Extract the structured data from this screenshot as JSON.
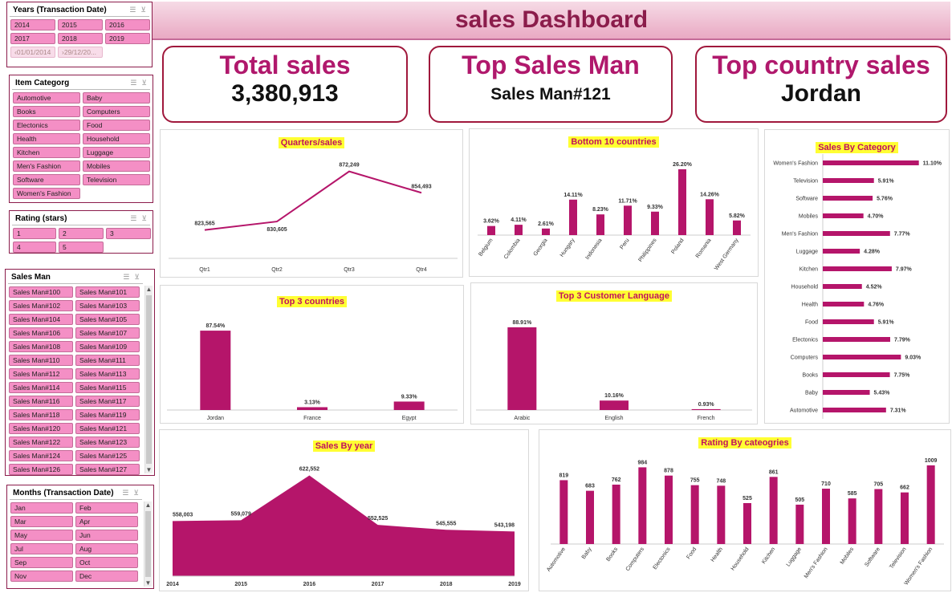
{
  "title": "sales Dashboard",
  "kpis": {
    "total_sales_label": "Total sales",
    "total_sales_value": "3,380,913",
    "top_salesman_label": "Top Sales Man",
    "top_salesman_value": "Sales Man#121",
    "top_country_label": "Top country sales",
    "top_country_value": "Jordan"
  },
  "slicers": {
    "years": {
      "title": "Years (Transaction Date)",
      "items": [
        "2014",
        "2015",
        "2016",
        "2017",
        "2018",
        "2019"
      ],
      "dim_items": [
        "‹01/01/2014",
        "›29/12/20..."
      ]
    },
    "category": {
      "title": "Item Categorg",
      "items": [
        "Automotive",
        "Baby",
        "Books",
        "Computers",
        "Electonics",
        "Food",
        "Health",
        "Household",
        "Kitchen",
        "Luggage",
        "Men's Fashion",
        "Mobiles",
        "Software",
        "Television",
        "Women's Fashion"
      ]
    },
    "rating": {
      "title": "Rating (stars)",
      "items": [
        "1",
        "2",
        "3",
        "4",
        "5"
      ]
    },
    "salesman": {
      "title": "Sales Man",
      "items": [
        "Sales Man#100",
        "Sales Man#101",
        "Sales Man#102",
        "Sales Man#103",
        "Sales Man#104",
        "Sales Man#105",
        "Sales Man#106",
        "Sales Man#107",
        "Sales Man#108",
        "Sales Man#109",
        "Sales Man#110",
        "Sales Man#111",
        "Sales Man#112",
        "Sales Man#113",
        "Sales Man#114",
        "Sales Man#115",
        "Sales Man#116",
        "Sales Man#117",
        "Sales Man#118",
        "Sales Man#119",
        "Sales Man#120",
        "Sales Man#121",
        "Sales Man#122",
        "Sales Man#123",
        "Sales Man#124",
        "Sales Man#125",
        "Sales Man#126",
        "Sales Man#127"
      ]
    },
    "months": {
      "title": "Months (Transaction Date)",
      "items": [
        "Jan",
        "Feb",
        "Mar",
        "Apr",
        "May",
        "Jun",
        "Jul",
        "Aug",
        "Sep",
        "Oct",
        "Nov",
        "Dec"
      ]
    }
  },
  "colors": {
    "accent": "#b5156a",
    "title": "#8b1c4b",
    "label_bg": "#ffff33"
  },
  "chart_data": [
    {
      "id": "quarters",
      "type": "line",
      "title": "Quarters/sales",
      "categories": [
        "Qtr1",
        "Qtr2",
        "Qtr3",
        "Qtr4"
      ],
      "values": [
        823565,
        830605,
        872249,
        854493
      ],
      "labels": [
        "823,565",
        "830,605",
        "872,249",
        "854,493"
      ],
      "ylim": [
        800000,
        880000
      ]
    },
    {
      "id": "bottom10",
      "type": "bar",
      "title": "Bottom 10 countries",
      "categories": [
        "Belgium",
        "Colombia",
        "Georgia",
        "Hungary",
        "Indonesia",
        "Peru",
        "Philippines",
        "Poland",
        "Romania",
        "West Germany"
      ],
      "values": [
        3.62,
        4.11,
        2.61,
        14.11,
        8.23,
        11.71,
        9.33,
        26.2,
        14.26,
        5.82
      ],
      "labels": [
        "3.62%",
        "4.11%",
        "2.61%",
        "14.11%",
        "8.23%",
        "11.71%",
        "9.33%",
        "26.20%",
        "14.26%",
        "5.82%"
      ],
      "ylim": [
        0,
        30
      ]
    },
    {
      "id": "category",
      "type": "bar",
      "orientation": "horizontal",
      "title": "Sales By Category",
      "categories": [
        "Women's Fashion",
        "Television",
        "Software",
        "Mobiles",
        "Men's Fashion",
        "Luggage",
        "Kitchen",
        "Household",
        "Health",
        "Food",
        "Electonics",
        "Computers",
        "Books",
        "Baby",
        "Automotive"
      ],
      "values": [
        11.1,
        5.91,
        5.76,
        4.7,
        7.77,
        4.28,
        7.97,
        4.52,
        4.76,
        5.91,
        7.79,
        9.03,
        7.75,
        5.43,
        7.31
      ],
      "labels": [
        "11.10%",
        "5.91%",
        "5.76%",
        "4.70%",
        "7.77%",
        "4.28%",
        "7.97%",
        "4.52%",
        "4.76%",
        "5.91%",
        "7.79%",
        "9.03%",
        "7.75%",
        "5.43%",
        "7.31%"
      ],
      "xlim": [
        0,
        11.5
      ]
    },
    {
      "id": "top3countries",
      "type": "bar",
      "title": "Top 3 countries",
      "categories": [
        "Jordan",
        "France",
        "Egypt"
      ],
      "values": [
        87.54,
        3.13,
        9.33
      ],
      "labels": [
        "87.54%",
        "3.13%",
        "9.33%"
      ],
      "ylim": [
        0,
        100
      ]
    },
    {
      "id": "language",
      "type": "bar",
      "title": "Top 3 Customer Language",
      "categories": [
        "Arabic",
        "English",
        "French"
      ],
      "values": [
        88.91,
        10.16,
        0.93
      ],
      "labels": [
        "88.91%",
        "10.16%",
        "0.93%"
      ],
      "ylim": [
        0,
        100
      ]
    },
    {
      "id": "years",
      "type": "area",
      "title": "Sales By year",
      "categories": [
        "2014",
        "2015",
        "2016",
        "2017",
        "2018",
        "2019"
      ],
      "values": [
        558003,
        559079,
        622552,
        552525,
        545555,
        543198
      ],
      "labels": [
        "558,003",
        "559,079",
        "622,552",
        "552,525",
        "545,555",
        "543,198"
      ],
      "ylim": [
        480000,
        630000
      ]
    },
    {
      "id": "rating",
      "type": "bar",
      "title": "Rating By cateogries",
      "categories": [
        "Automotive",
        "Baby",
        "Books",
        "Computers",
        "Electonics",
        "Food",
        "Health",
        "Household",
        "Kitchen",
        "Luggage",
        "Men's Fashion",
        "Mobiles",
        "Software",
        "Television",
        "Women's Fashion"
      ],
      "values": [
        819,
        683,
        762,
        984,
        878,
        755,
        748,
        525,
        861,
        505,
        710,
        585,
        705,
        662,
        1009
      ],
      "labels": [
        "819",
        "683",
        "762",
        "984",
        "878",
        "755",
        "748",
        "525",
        "861",
        "505",
        "710",
        "585",
        "705",
        "662",
        "1009"
      ],
      "ylim": [
        0,
        1050
      ]
    }
  ]
}
